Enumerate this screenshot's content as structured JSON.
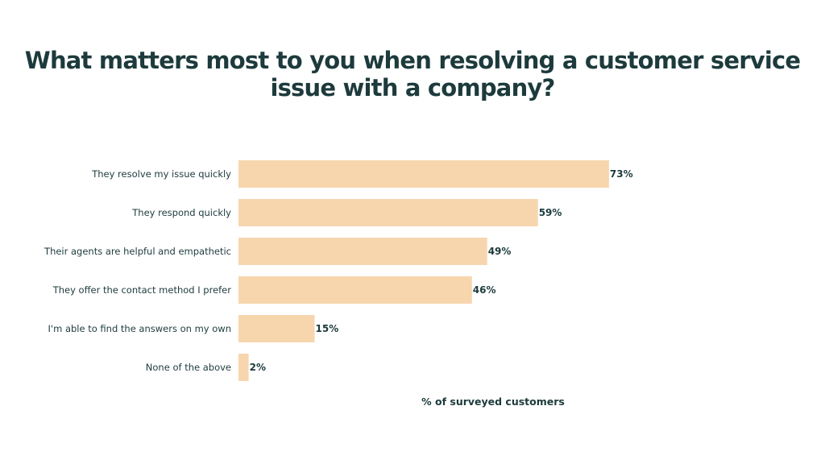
{
  "chart_data": {
    "type": "bar",
    "orientation": "horizontal",
    "title": "What matters most to you when resolving a customer service issue with a company?",
    "categories": [
      "They resolve my issue quickly",
      "They respond quickly",
      "Their agents are helpful and empathetic",
      "They offer the contact method I prefer",
      "I'm able to find the answers on my own",
      "None of the above"
    ],
    "values": [
      73,
      59,
      49,
      46,
      15,
      2
    ],
    "value_labels": [
      "73%",
      "59%",
      "49%",
      "46%",
      "15%",
      "2%"
    ],
    "xlabel": "% of surveyed customers",
    "ylabel": "",
    "xlim": [
      0,
      100
    ],
    "grid": false,
    "colors": {
      "bar": "#F7D6AE",
      "text": "#1D3A3C"
    }
  }
}
